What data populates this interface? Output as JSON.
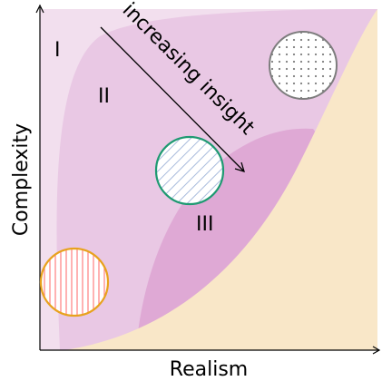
{
  "axes": {
    "x_label": "Realism",
    "y_label": "Complexity"
  },
  "regions": {
    "region1_label": "I",
    "region2_label": "II",
    "region3_label": "III"
  },
  "arrow": {
    "label": "increasing insight"
  },
  "colors": {
    "region1_fill": "#f2dfee",
    "region2_fill": "#e9c8e4",
    "region3_fill": "#dfa9d5",
    "realism_band_fill": "#f9e7c8",
    "orange_circle_stroke": "#e8a21d",
    "orange_circle_hatch": "#ff7f7f",
    "green_circle_stroke": "#1f9a72",
    "green_circle_hatch": "#9fb4d9",
    "gray_circle_stroke": "#7d7d7d",
    "gray_circle_dots": "#7d7d7d",
    "axis_color": "#000000"
  }
}
